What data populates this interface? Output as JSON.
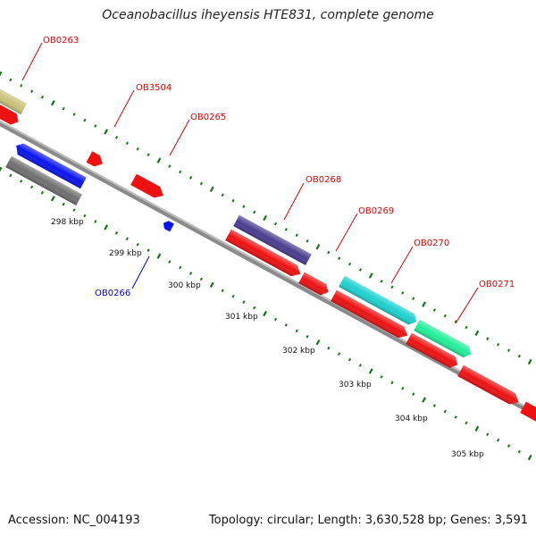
{
  "title": "Oceanobacillus iheyensis HTE831, complete genome",
  "footer": {
    "accession": "Accession: NC_004193",
    "summary": "Topology: circular; Length: 3,630,528 bp; Genes: 3,591"
  },
  "colors": {
    "forward_label": "#dd0000",
    "reverse_label": "#0000cc",
    "axis": "#808080",
    "ticks": "#117711"
  },
  "scale_labels": [
    "298 kbp",
    "299 kbp",
    "300 kbp",
    "301 kbp",
    "302 kbp",
    "303 kbp",
    "304 kbp",
    "305 kbp"
  ],
  "genes": [
    {
      "name": "OB0263",
      "color": "#c8c27a",
      "strand": "forward"
    },
    {
      "name": "OB3504",
      "color": "#ee1111",
      "strand": "forward"
    },
    {
      "name": "OB0265",
      "color": "#ee1111",
      "strand": "forward"
    },
    {
      "name": "OB0266",
      "color": "#0a14ee",
      "strand": "reverse"
    },
    {
      "name": "OB0268",
      "color": "#4a3d8f",
      "strand": "forward"
    },
    {
      "name": "OB0269",
      "color": "#ee1111",
      "strand": "forward"
    },
    {
      "name": "OB0270",
      "color": "#1fd0d0",
      "strand": "forward"
    },
    {
      "name": "OB0271",
      "color": "#22ee99",
      "strand": "forward"
    }
  ]
}
